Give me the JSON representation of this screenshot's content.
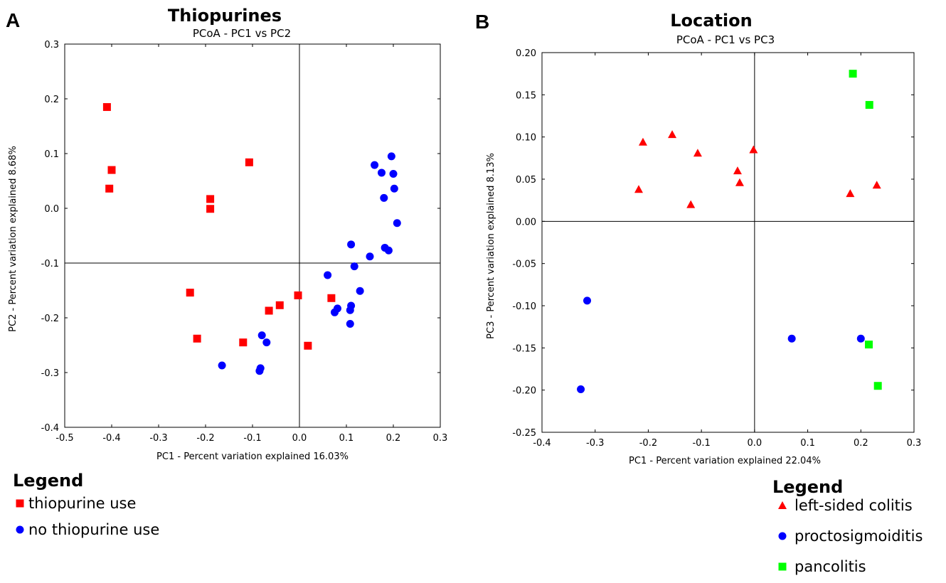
{
  "panels": [
    {
      "letter": "A",
      "title": "Thiopurines",
      "subtitle": "PCoA - PC1 vs PC2",
      "legend_title": "Legend"
    },
    {
      "letter": "B",
      "title": "Location",
      "subtitle": "PCoA - PC1 vs PC3",
      "legend_title": "Legend"
    }
  ],
  "chart_data": [
    {
      "type": "scatter",
      "title": "Thiopurines",
      "subtitle": "PCoA - PC1 vs PC2",
      "xlabel": "PC1 - Percent variation explained 16.03%",
      "ylabel": "PC2 - Percent variation explained 8.68%",
      "xlim": [
        -0.5,
        0.3
      ],
      "ylim": [
        -0.4,
        0.3
      ],
      "xticks": [
        "-0.5",
        "-0.4",
        "-0.3",
        "-0.2",
        "-0.1",
        "0.0",
        "0.1",
        "0.2",
        "0.3"
      ],
      "yticks": [
        "-0.4",
        "-0.3",
        "-0.2",
        "-0.1",
        "0.0",
        "0.1",
        "0.2",
        "0.3"
      ],
      "crosshair": {
        "x": 0.0,
        "y": -0.1
      },
      "legend_placement": "bottom-left",
      "series": [
        {
          "name": "thiopurine use",
          "marker": "square",
          "color": "#ff0000",
          "points": [
            [
              -0.41,
              0.185
            ],
            [
              -0.4,
              0.07
            ],
            [
              -0.405,
              0.036
            ],
            [
              -0.107,
              0.084
            ],
            [
              -0.19,
              0.017
            ],
            [
              -0.19,
              -0.001
            ],
            [
              -0.233,
              -0.154
            ],
            [
              -0.218,
              -0.238
            ],
            [
              -0.12,
              -0.245
            ],
            [
              -0.065,
              -0.187
            ],
            [
              -0.042,
              -0.177
            ],
            [
              -0.003,
              -0.159
            ],
            [
              0.068,
              -0.164
            ],
            [
              0.018,
              -0.251
            ]
          ]
        },
        {
          "name": "no thiopurine use",
          "marker": "circle",
          "color": "#0000ff",
          "points": [
            [
              0.196,
              0.095
            ],
            [
              0.16,
              0.079
            ],
            [
              0.175,
              0.065
            ],
            [
              0.2,
              0.063
            ],
            [
              0.202,
              0.036
            ],
            [
              0.18,
              0.019
            ],
            [
              0.208,
              -0.027
            ],
            [
              0.11,
              -0.066
            ],
            [
              0.182,
              -0.072
            ],
            [
              0.19,
              -0.077
            ],
            [
              0.15,
              -0.088
            ],
            [
              0.117,
              -0.106
            ],
            [
              0.06,
              -0.122
            ],
            [
              0.129,
              -0.151
            ],
            [
              0.11,
              -0.178
            ],
            [
              0.081,
              -0.183
            ],
            [
              0.075,
              -0.19
            ],
            [
              0.108,
              -0.186
            ],
            [
              0.108,
              -0.211
            ],
            [
              -0.08,
              -0.232
            ],
            [
              -0.07,
              -0.245
            ],
            [
              -0.165,
              -0.287
            ],
            [
              -0.083,
              -0.292
            ],
            [
              -0.085,
              -0.297
            ]
          ]
        }
      ]
    },
    {
      "type": "scatter",
      "title": "Location",
      "subtitle": "PCoA - PC1 vs PC3",
      "xlabel": "PC1 - Percent variation explained 22.04%",
      "ylabel": "PC3 - Percent variation explained 8.13%",
      "xlim": [
        -0.4,
        0.3
      ],
      "ylim": [
        -0.25,
        0.2
      ],
      "xticks": [
        "-0.4",
        "-0.3",
        "-0.2",
        "-0.1",
        "0.0",
        "0.1",
        "0.2",
        "0.3"
      ],
      "yticks": [
        "-0.25",
        "-0.20",
        "-0.15",
        "-0.10",
        "-0.05",
        "0.00",
        "0.05",
        "0.10",
        "0.15",
        "0.20"
      ],
      "crosshair": {
        "x": 0.0,
        "y": 0.0
      },
      "legend_placement": "bottom-right",
      "series": [
        {
          "name": "left-sided colitis",
          "marker": "triangle",
          "color": "#ff0000",
          "points": [
            [
              -0.21,
              0.094
            ],
            [
              -0.155,
              0.103
            ],
            [
              -0.107,
              0.081
            ],
            [
              -0.218,
              0.038
            ],
            [
              -0.12,
              0.02
            ],
            [
              -0.032,
              0.06
            ],
            [
              -0.028,
              0.046
            ],
            [
              -0.002,
              0.085
            ],
            [
              0.18,
              0.033
            ],
            [
              0.23,
              0.043
            ]
          ]
        },
        {
          "name": "proctosigmoiditis",
          "marker": "circle",
          "color": "#0000ff",
          "points": [
            [
              -0.315,
              -0.094
            ],
            [
              -0.327,
              -0.199
            ],
            [
              0.07,
              -0.139
            ],
            [
              0.2,
              -0.139
            ]
          ]
        },
        {
          "name": "pancolitis",
          "marker": "square",
          "color": "#00ff00",
          "points": [
            [
              0.185,
              0.175
            ],
            [
              0.216,
              0.138
            ],
            [
              0.215,
              -0.146
            ],
            [
              0.232,
              -0.195
            ]
          ]
        }
      ]
    }
  ]
}
